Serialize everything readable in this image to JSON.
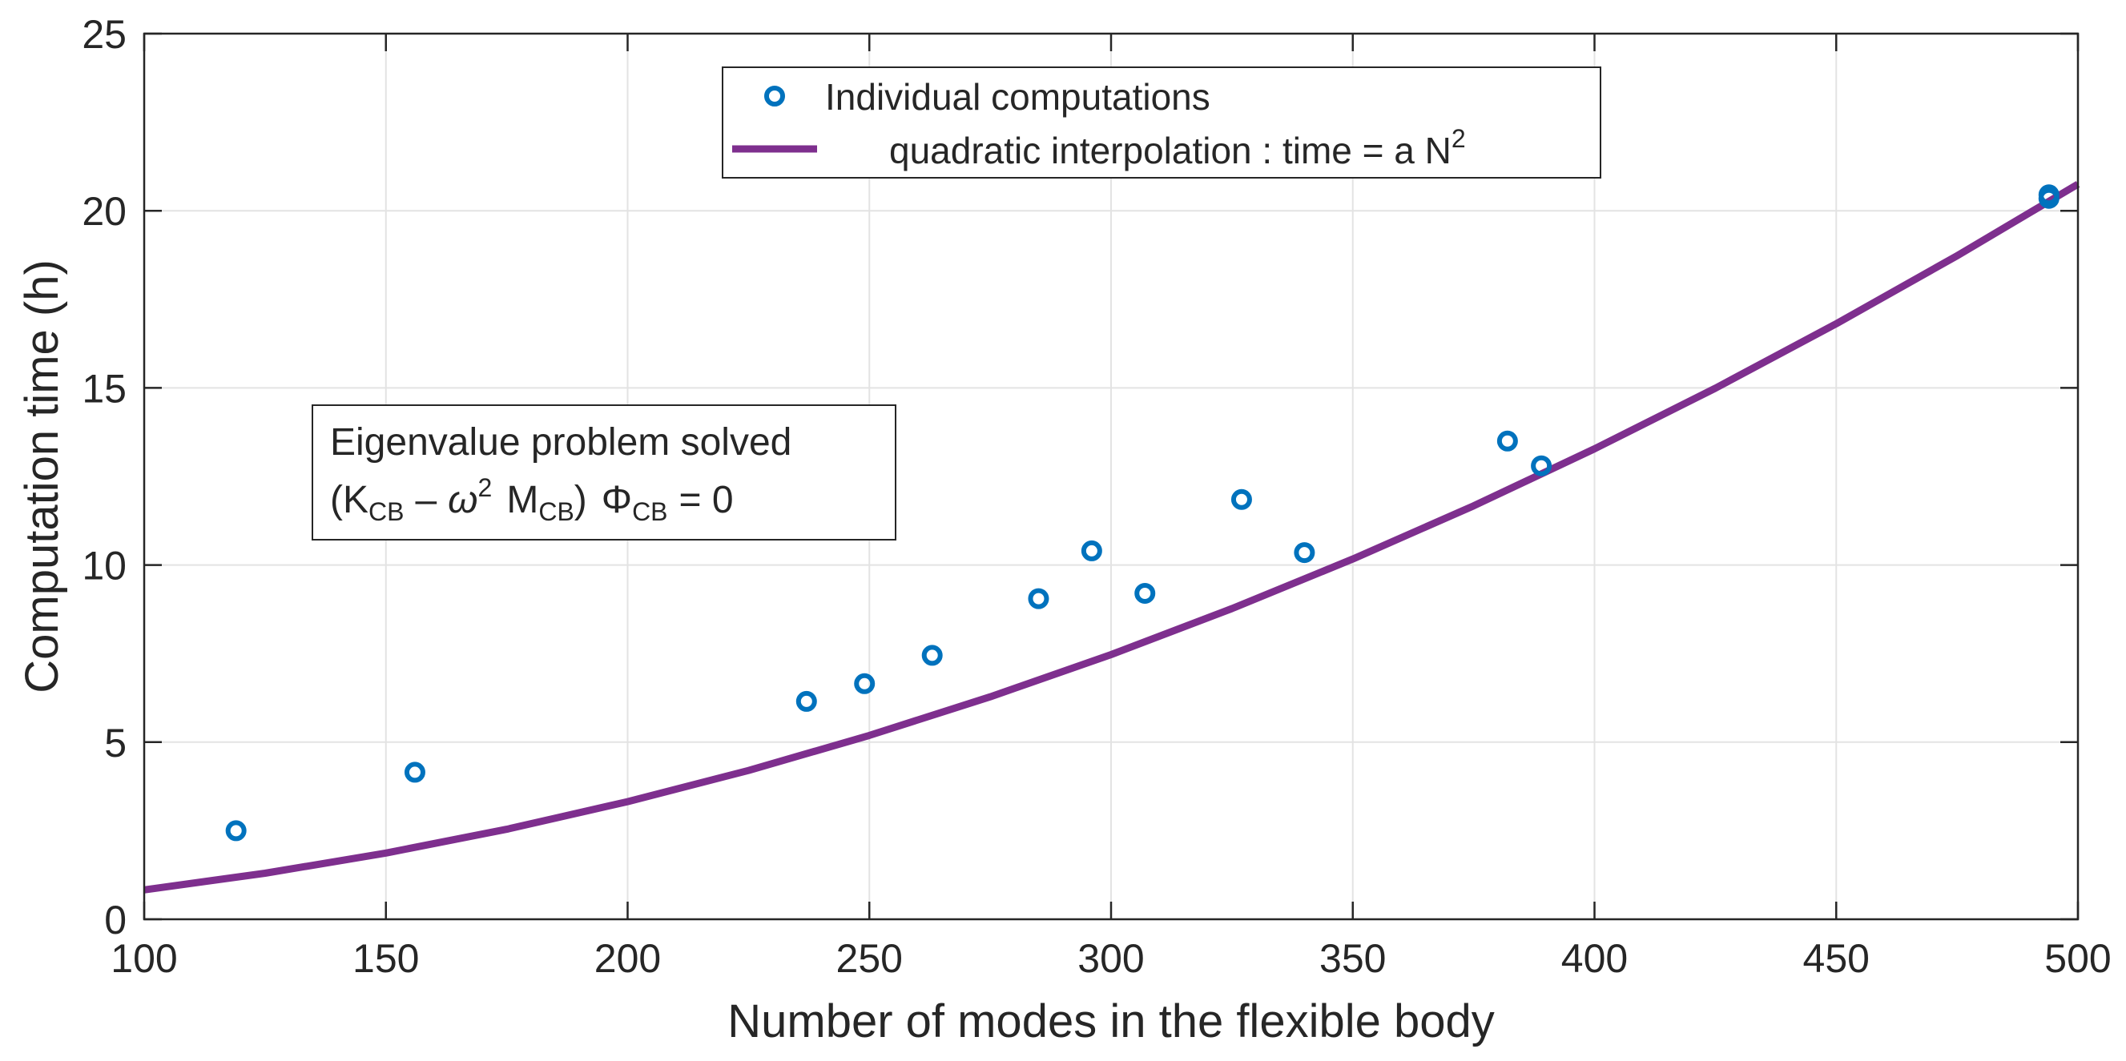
{
  "chart_data": {
    "type": "scatter",
    "xlabel": "Number of modes in the flexible body",
    "ylabel": "Computation time (h)",
    "xlim": [
      100,
      500
    ],
    "ylim": [
      0,
      25
    ],
    "xticks": [
      100,
      150,
      200,
      250,
      300,
      350,
      400,
      450,
      500
    ],
    "yticks": [
      0,
      5,
      10,
      15,
      20,
      25
    ],
    "grid": true,
    "colors": {
      "points": "#0072BD",
      "fit": "#7E2F8E"
    },
    "series": [
      {
        "name": "Individual computations",
        "kind": "scatter",
        "marker": "circle",
        "x": [
          119,
          156,
          237,
          249,
          263,
          285,
          296,
          307,
          327,
          340,
          382,
          389,
          494,
          494
        ],
        "y": [
          2.5,
          4.15,
          6.15,
          6.65,
          7.45,
          9.05,
          10.4,
          9.2,
          11.85,
          10.35,
          13.5,
          12.8,
          20.45,
          20.35
        ]
      },
      {
        "name": "quadratic interpolation : time = a N²",
        "kind": "line",
        "a": 8.3e-05,
        "x": [
          100,
          125,
          150,
          175,
          200,
          225,
          250,
          275,
          300,
          325,
          350,
          375,
          400,
          425,
          450,
          475,
          500
        ],
        "y": [
          0.83,
          1.3,
          1.87,
          2.54,
          3.32,
          4.2,
          5.19,
          6.28,
          7.47,
          8.77,
          10.17,
          11.67,
          13.28,
          14.99,
          16.81,
          18.73,
          20.75
        ]
      }
    ],
    "legend": {
      "position": "top-center",
      "entries": [
        "Individual computations",
        "quadratic interpolation : time = a N"
      ],
      "fit_superscript": "2"
    },
    "annotation": {
      "position": "left-middle",
      "line1": "Eigenvalue problem solved",
      "line2": {
        "open": "(K",
        "sub1": "CB",
        "minus": "–",
        "omega": "ω",
        "sup": "2",
        "m": "M",
        "sub2": "CB",
        "close": ")",
        "phi": "Φ",
        "sub3": "CB",
        "eq": "= 0"
      }
    }
  }
}
